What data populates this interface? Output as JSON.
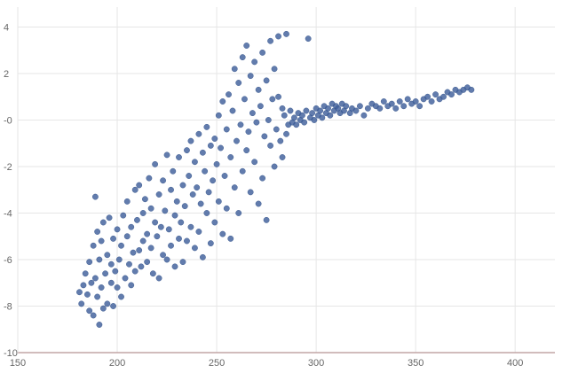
{
  "chart_data": {
    "type": "scatter",
    "title": "",
    "xlabel": "",
    "ylabel": "",
    "xlim": [
      150,
      420
    ],
    "ylim": [
      -10,
      4.4
    ],
    "x_ticks": [
      150,
      200,
      250,
      300,
      350,
      400
    ],
    "y_ticks": [
      -10,
      -8,
      -6,
      -4,
      -2,
      0,
      2,
      4
    ],
    "x_tick_labels": [
      "150",
      "200",
      "250",
      "300",
      "350",
      "400"
    ],
    "y_tick_labels": [
      "-10",
      "-8",
      "-6",
      "-4",
      "-2",
      "-0",
      "2",
      "4"
    ],
    "grid": true,
    "legend": "none",
    "colors": {
      "points": "#3f5f9b",
      "grid": "#e6e6e6",
      "axis": "#c2a5a5",
      "tick_text": "#666666"
    },
    "series": [
      {
        "points": [
          [
            181,
            -7.4
          ],
          [
            182,
            -7.9
          ],
          [
            183,
            -7.1
          ],
          [
            184,
            -6.6
          ],
          [
            185,
            -7.5
          ],
          [
            186,
            -8.2
          ],
          [
            186,
            -6.1
          ],
          [
            187,
            -7.0
          ],
          [
            188,
            -5.4
          ],
          [
            188,
            -8.4
          ],
          [
            189,
            -6.8
          ],
          [
            189,
            -3.3
          ],
          [
            190,
            -7.6
          ],
          [
            190,
            -4.8
          ],
          [
            191,
            -8.8
          ],
          [
            191,
            -6.0
          ],
          [
            192,
            -7.2
          ],
          [
            192,
            -5.2
          ],
          [
            193,
            -8.1
          ],
          [
            193,
            -4.4
          ],
          [
            194,
            -6.6
          ],
          [
            195,
            -7.9
          ],
          [
            195,
            -5.8
          ],
          [
            196,
            -4.2
          ],
          [
            197,
            -7.0
          ],
          [
            197,
            -6.2
          ],
          [
            198,
            -8.0
          ],
          [
            198,
            -5.1
          ],
          [
            199,
            -6.5
          ],
          [
            200,
            -7.2
          ],
          [
            200,
            -4.7
          ],
          [
            201,
            -6.0
          ],
          [
            202,
            -5.4
          ],
          [
            202,
            -7.6
          ],
          [
            203,
            -4.1
          ],
          [
            204,
            -6.8
          ],
          [
            205,
            -5.0
          ],
          [
            205,
            -3.5
          ],
          [
            206,
            -6.2
          ],
          [
            207,
            -4.6
          ],
          [
            207,
            -7.1
          ],
          [
            208,
            -5.7
          ],
          [
            209,
            -3.0
          ],
          [
            209,
            -6.5
          ],
          [
            210,
            -4.3
          ],
          [
            211,
            -5.6
          ],
          [
            211,
            -2.8
          ],
          [
            212,
            -6.3
          ],
          [
            213,
            -4.0
          ],
          [
            213,
            -5.2
          ],
          [
            214,
            -3.4
          ],
          [
            215,
            -6.1
          ],
          [
            215,
            -4.9
          ],
          [
            216,
            -2.5
          ],
          [
            217,
            -5.5
          ],
          [
            217,
            -3.8
          ],
          [
            218,
            -6.6
          ],
          [
            219,
            -4.4
          ],
          [
            219,
            -1.9
          ],
          [
            220,
            -5.0
          ],
          [
            221,
            -3.2
          ],
          [
            221,
            -6.8
          ],
          [
            222,
            -4.6
          ],
          [
            223,
            -2.6
          ],
          [
            223,
            -5.8
          ],
          [
            224,
            -3.9
          ],
          [
            225,
            -6.0
          ],
          [
            225,
            -1.5
          ],
          [
            226,
            -4.7
          ],
          [
            227,
            -3.0
          ],
          [
            227,
            -5.4
          ],
          [
            228,
            -2.2
          ],
          [
            229,
            -4.1
          ],
          [
            229,
            -6.3
          ],
          [
            230,
            -3.5
          ],
          [
            231,
            -5.1
          ],
          [
            231,
            -1.6
          ],
          [
            232,
            -4.4
          ],
          [
            233,
            -2.8
          ],
          [
            233,
            -6.1
          ],
          [
            234,
            -3.7
          ],
          [
            235,
            -1.3
          ],
          [
            235,
            -5.2
          ],
          [
            236,
            -2.4
          ],
          [
            237,
            -4.6
          ],
          [
            237,
            -0.9
          ],
          [
            238,
            -3.2
          ],
          [
            239,
            -5.5
          ],
          [
            239,
            -1.8
          ],
          [
            240,
            -2.9
          ],
          [
            241,
            -4.8
          ],
          [
            241,
            -0.6
          ],
          [
            242,
            -3.6
          ],
          [
            243,
            -1.4
          ],
          [
            243,
            -5.9
          ],
          [
            244,
            -2.2
          ],
          [
            245,
            -4.0
          ],
          [
            245,
            -0.3
          ],
          [
            246,
            -3.1
          ],
          [
            247,
            -1.1
          ],
          [
            247,
            -5.3
          ],
          [
            248,
            -2.6
          ],
          [
            249,
            -0.8
          ],
          [
            249,
            -4.4
          ],
          [
            250,
            -1.9
          ],
          [
            251,
            0.2
          ],
          [
            251,
            -3.5
          ],
          [
            252,
            -1.2
          ],
          [
            253,
            -4.9
          ],
          [
            253,
            0.8
          ],
          [
            254,
            -2.4
          ],
          [
            255,
            -0.4
          ],
          [
            255,
            -3.8
          ],
          [
            256,
            1.1
          ],
          [
            257,
            -1.6
          ],
          [
            257,
            -5.1
          ],
          [
            258,
            0.4
          ],
          [
            259,
            -2.9
          ],
          [
            259,
            2.2
          ],
          [
            260,
            -0.9
          ],
          [
            261,
            1.6
          ],
          [
            261,
            -4.0
          ],
          [
            262,
            -0.2
          ],
          [
            263,
            2.7
          ],
          [
            263,
            -2.2
          ],
          [
            264,
            0.9
          ],
          [
            265,
            -1.3
          ],
          [
            265,
            3.2
          ],
          [
            266,
            -0.5
          ],
          [
            267,
            1.9
          ],
          [
            267,
            -3.1
          ],
          [
            268,
            0.3
          ],
          [
            269,
            2.5
          ],
          [
            269,
            -1.8
          ],
          [
            270,
            -0.1
          ],
          [
            271,
            1.3
          ],
          [
            271,
            -3.6
          ],
          [
            272,
            0.6
          ],
          [
            273,
            2.9
          ],
          [
            273,
            -2.5
          ],
          [
            274,
            -0.7
          ],
          [
            275,
            1.7
          ],
          [
            275,
            -4.3
          ],
          [
            276,
            0.0
          ],
          [
            277,
            3.4
          ],
          [
            277,
            -1.1
          ],
          [
            278,
            0.9
          ],
          [
            279,
            2.2
          ],
          [
            279,
            -2.0
          ],
          [
            280,
            -0.4
          ],
          [
            281,
            1.0
          ],
          [
            281,
            3.6
          ],
          [
            282,
            -0.9
          ],
          [
            283,
            0.5
          ],
          [
            283,
            -1.6
          ],
          [
            284,
            0.2
          ],
          [
            285,
            3.7
          ],
          [
            285,
            -0.6
          ],
          [
            286,
            -0.2
          ],
          [
            287,
            0.4
          ],
          [
            288,
            -0.1
          ],
          [
            289,
            0.1
          ],
          [
            290,
            -0.2
          ],
          [
            291,
            0.3
          ],
          [
            292,
            0.0
          ],
          [
            293,
            0.2
          ],
          [
            294,
            -0.1
          ],
          [
            295,
            0.4
          ],
          [
            296,
            3.5
          ],
          [
            297,
            0.1
          ],
          [
            298,
            0.3
          ],
          [
            299,
            0.0
          ],
          [
            300,
            0.5
          ],
          [
            301,
            0.2
          ],
          [
            302,
            0.4
          ],
          [
            303,
            0.1
          ],
          [
            304,
            0.6
          ],
          [
            305,
            0.3
          ],
          [
            306,
            0.5
          ],
          [
            307,
            0.2
          ],
          [
            308,
            0.7
          ],
          [
            309,
            0.4
          ],
          [
            310,
            0.6
          ],
          [
            311,
            0.5
          ],
          [
            312,
            0.3
          ],
          [
            313,
            0.7
          ],
          [
            314,
            0.4
          ],
          [
            315,
            0.6
          ],
          [
            317,
            0.3
          ],
          [
            318,
            0.5
          ],
          [
            320,
            0.4
          ],
          [
            322,
            0.6
          ],
          [
            324,
            0.2
          ],
          [
            326,
            0.5
          ],
          [
            328,
            0.7
          ],
          [
            330,
            0.6
          ],
          [
            332,
            0.5
          ],
          [
            334,
            0.8
          ],
          [
            336,
            0.6
          ],
          [
            338,
            0.7
          ],
          [
            340,
            0.5
          ],
          [
            342,
            0.8
          ],
          [
            344,
            0.6
          ],
          [
            346,
            0.9
          ],
          [
            348,
            0.7
          ],
          [
            350,
            0.8
          ],
          [
            352,
            0.6
          ],
          [
            354,
            0.9
          ],
          [
            356,
            1.0
          ],
          [
            358,
            0.8
          ],
          [
            360,
            1.1
          ],
          [
            362,
            0.9
          ],
          [
            364,
            1.0
          ],
          [
            366,
            1.2
          ],
          [
            368,
            1.1
          ],
          [
            370,
            1.3
          ],
          [
            372,
            1.2
          ],
          [
            374,
            1.3
          ],
          [
            376,
            1.4
          ],
          [
            378,
            1.3
          ]
        ]
      }
    ]
  }
}
